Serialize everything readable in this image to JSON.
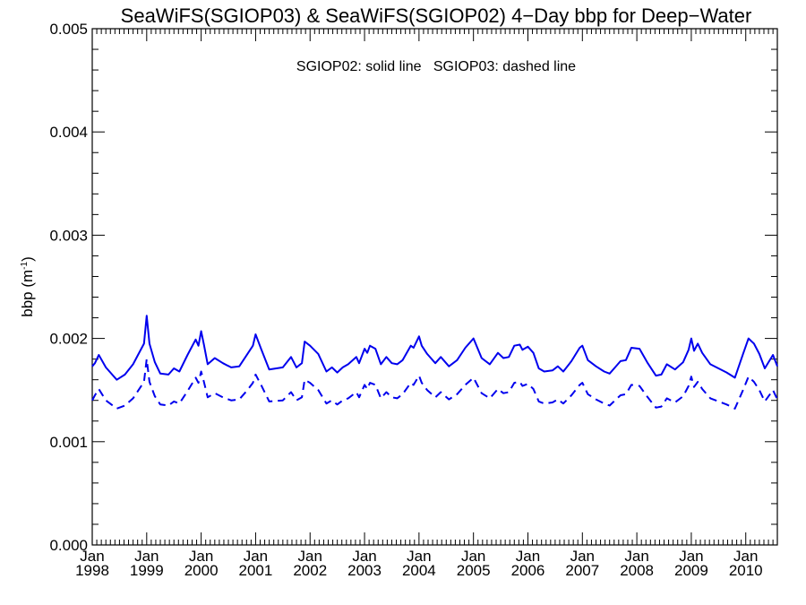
{
  "chart_data": {
    "type": "line",
    "title": "SeaWiFS(SGIOP03) & SeaWiFS(SGIOP02) 4−Day bbp for Deep−Water",
    "annotation": "SGIOP02: solid line   SGIOP03: dashed line",
    "ylabel": "bbp (m",
    "ylabel_sup": "-1",
    "ylabel_close": ")",
    "xlim": [
      1998.0,
      2010.58
    ],
    "ylim": [
      0.0,
      0.005
    ],
    "yticks": [
      "0.000",
      "0.001",
      "0.002",
      "0.003",
      "0.004",
      "0.005"
    ],
    "ytick_values": [
      0.0,
      0.001,
      0.002,
      0.003,
      0.004,
      0.005
    ],
    "xticks": [
      {
        "month": "Jan",
        "year": "1998",
        "value": 1998
      },
      {
        "month": "Jan",
        "year": "1999",
        "value": 1999
      },
      {
        "month": "Jan",
        "year": "2000",
        "value": 2000
      },
      {
        "month": "Jan",
        "year": "2001",
        "value": 2001
      },
      {
        "month": "Jan",
        "year": "2002",
        "value": 2002
      },
      {
        "month": "Jan",
        "year": "2003",
        "value": 2003
      },
      {
        "month": "Jan",
        "year": "2004",
        "value": 2004
      },
      {
        "month": "Jan",
        "year": "2005",
        "value": 2005
      },
      {
        "month": "Jan",
        "year": "2006",
        "value": 2006
      },
      {
        "month": "Jan",
        "year": "2007",
        "value": 2007
      },
      {
        "month": "Jan",
        "year": "2008",
        "value": 2008
      },
      {
        "month": "Jan",
        "year": "2009",
        "value": 2009
      },
      {
        "month": "Jan",
        "year": "2010",
        "value": 2010
      }
    ],
    "series": [
      {
        "name": "SGIOP02",
        "style": "solid",
        "color": "#0000ee",
        "x": [
          1998.0,
          1998.05,
          1998.12,
          1998.25,
          1998.45,
          1998.6,
          1998.75,
          1998.95,
          1999.0,
          1999.05,
          1999.15,
          1999.25,
          1999.4,
          1999.5,
          1999.6,
          1999.75,
          1999.9,
          1999.95,
          2000.0,
          2000.05,
          2000.12,
          2000.25,
          2000.4,
          2000.55,
          2000.7,
          2000.85,
          2000.95,
          2001.0,
          2001.1,
          2001.25,
          2001.5,
          2001.65,
          2001.75,
          2001.85,
          2001.9,
          2002.0,
          2002.15,
          2002.3,
          2002.4,
          2002.5,
          2002.6,
          2002.7,
          2002.85,
          2002.9,
          2003.0,
          2003.05,
          2003.1,
          2003.2,
          2003.3,
          2003.4,
          2003.5,
          2003.6,
          2003.7,
          2003.85,
          2003.9,
          2004.0,
          2004.05,
          2004.15,
          2004.3,
          2004.4,
          2004.55,
          2004.7,
          2004.85,
          2005.0,
          2005.15,
          2005.3,
          2005.45,
          2005.55,
          2005.65,
          2005.75,
          2005.85,
          2005.9,
          2006.0,
          2006.1,
          2006.2,
          2006.3,
          2006.45,
          2006.55,
          2006.65,
          2006.8,
          2006.95,
          2007.0,
          2007.1,
          2007.25,
          2007.4,
          2007.5,
          2007.6,
          2007.7,
          2007.8,
          2007.9,
          2008.05,
          2008.2,
          2008.35,
          2008.45,
          2008.55,
          2008.7,
          2008.85,
          2008.95,
          2009.0,
          2009.05,
          2009.12,
          2009.2,
          2009.35,
          2009.5,
          2009.65,
          2009.8,
          2009.95,
          2010.05,
          2010.15,
          2010.25,
          2010.35,
          2010.5,
          2010.58
        ],
        "y": [
          0.00173,
          0.00176,
          0.00184,
          0.00172,
          0.0016,
          0.00165,
          0.00175,
          0.00195,
          0.00222,
          0.00195,
          0.00177,
          0.00166,
          0.00165,
          0.00171,
          0.00168,
          0.00184,
          0.00199,
          0.00193,
          0.00207,
          0.00194,
          0.00175,
          0.00181,
          0.00176,
          0.00172,
          0.00173,
          0.00185,
          0.00193,
          0.00204,
          0.0019,
          0.0017,
          0.00172,
          0.00182,
          0.00172,
          0.00176,
          0.00197,
          0.00193,
          0.00185,
          0.00168,
          0.00172,
          0.00167,
          0.00172,
          0.00175,
          0.00182,
          0.00176,
          0.0019,
          0.00186,
          0.00193,
          0.0019,
          0.00175,
          0.00182,
          0.00176,
          0.00175,
          0.00179,
          0.00193,
          0.00191,
          0.00202,
          0.00193,
          0.00185,
          0.00176,
          0.00182,
          0.00173,
          0.00179,
          0.00191,
          0.002,
          0.00181,
          0.00175,
          0.00186,
          0.00181,
          0.00182,
          0.00193,
          0.00194,
          0.00189,
          0.00192,
          0.00186,
          0.00171,
          0.00168,
          0.00169,
          0.00173,
          0.00168,
          0.00178,
          0.00191,
          0.00193,
          0.00179,
          0.00173,
          0.00168,
          0.00166,
          0.00172,
          0.00178,
          0.00179,
          0.00191,
          0.0019,
          0.00176,
          0.00164,
          0.00165,
          0.00175,
          0.0017,
          0.00177,
          0.00189,
          0.002,
          0.00188,
          0.00195,
          0.00186,
          0.00175,
          0.00171,
          0.00167,
          0.00162,
          0.00185,
          0.002,
          0.00195,
          0.00185,
          0.00171,
          0.00184,
          0.00173
        ]
      },
      {
        "name": "SGIOP03",
        "style": "dashed",
        "color": "#0000ee",
        "x": [
          1998.0,
          1998.05,
          1998.12,
          1998.25,
          1998.45,
          1998.6,
          1998.75,
          1998.95,
          1999.0,
          1999.05,
          1999.15,
          1999.25,
          1999.4,
          1999.5,
          1999.6,
          1999.75,
          1999.9,
          1999.95,
          2000.0,
          2000.05,
          2000.12,
          2000.25,
          2000.4,
          2000.55,
          2000.7,
          2000.85,
          2000.95,
          2001.0,
          2001.1,
          2001.25,
          2001.5,
          2001.65,
          2001.75,
          2001.85,
          2001.9,
          2002.0,
          2002.15,
          2002.3,
          2002.4,
          2002.5,
          2002.6,
          2002.7,
          2002.85,
          2002.9,
          2003.0,
          2003.05,
          2003.1,
          2003.2,
          2003.3,
          2003.4,
          2003.5,
          2003.6,
          2003.7,
          2003.85,
          2003.9,
          2004.0,
          2004.05,
          2004.15,
          2004.3,
          2004.4,
          2004.55,
          2004.7,
          2004.85,
          2005.0,
          2005.15,
          2005.3,
          2005.45,
          2005.55,
          2005.65,
          2005.75,
          2005.85,
          2005.9,
          2006.0,
          2006.1,
          2006.2,
          2006.3,
          2006.45,
          2006.55,
          2006.65,
          2006.8,
          2006.95,
          2007.0,
          2007.1,
          2007.25,
          2007.4,
          2007.5,
          2007.6,
          2007.7,
          2007.8,
          2007.9,
          2008.05,
          2008.2,
          2008.35,
          2008.45,
          2008.55,
          2008.7,
          2008.85,
          2008.95,
          2009.0,
          2009.05,
          2009.12,
          2009.2,
          2009.35,
          2009.5,
          2009.65,
          2009.8,
          2009.95,
          2010.05,
          2010.15,
          2010.25,
          2010.35,
          2010.5,
          2010.58
        ],
        "y": [
          0.0014,
          0.00145,
          0.00151,
          0.0014,
          0.00132,
          0.00135,
          0.00142,
          0.00158,
          0.0018,
          0.00158,
          0.00144,
          0.00136,
          0.00135,
          0.00139,
          0.00137,
          0.00149,
          0.00162,
          0.00157,
          0.00168,
          0.00158,
          0.00143,
          0.00147,
          0.00143,
          0.0014,
          0.00141,
          0.0015,
          0.00157,
          0.00165,
          0.00155,
          0.00139,
          0.0014,
          0.00148,
          0.0014,
          0.00143,
          0.0016,
          0.00157,
          0.0015,
          0.00137,
          0.0014,
          0.00136,
          0.0014,
          0.00142,
          0.00148,
          0.00143,
          0.00155,
          0.00151,
          0.00157,
          0.00155,
          0.00142,
          0.00148,
          0.00143,
          0.00142,
          0.00146,
          0.00157,
          0.00155,
          0.00164,
          0.00157,
          0.0015,
          0.00143,
          0.00148,
          0.00141,
          0.00146,
          0.00155,
          0.00162,
          0.00147,
          0.00142,
          0.00151,
          0.00147,
          0.00148,
          0.00157,
          0.00158,
          0.00154,
          0.00156,
          0.00151,
          0.00139,
          0.00137,
          0.00138,
          0.00141,
          0.00137,
          0.00145,
          0.00155,
          0.00157,
          0.00146,
          0.00141,
          0.00137,
          0.00135,
          0.0014,
          0.00145,
          0.00146,
          0.00155,
          0.00154,
          0.00143,
          0.00133,
          0.00134,
          0.00142,
          0.00138,
          0.00144,
          0.00154,
          0.00163,
          0.00153,
          0.00158,
          0.00151,
          0.00142,
          0.00139,
          0.00136,
          0.00132,
          0.0015,
          0.00163,
          0.00158,
          0.0015,
          0.00139,
          0.0015,
          0.00141
        ]
      }
    ],
    "grid": false,
    "legend": "top-center annotation"
  }
}
